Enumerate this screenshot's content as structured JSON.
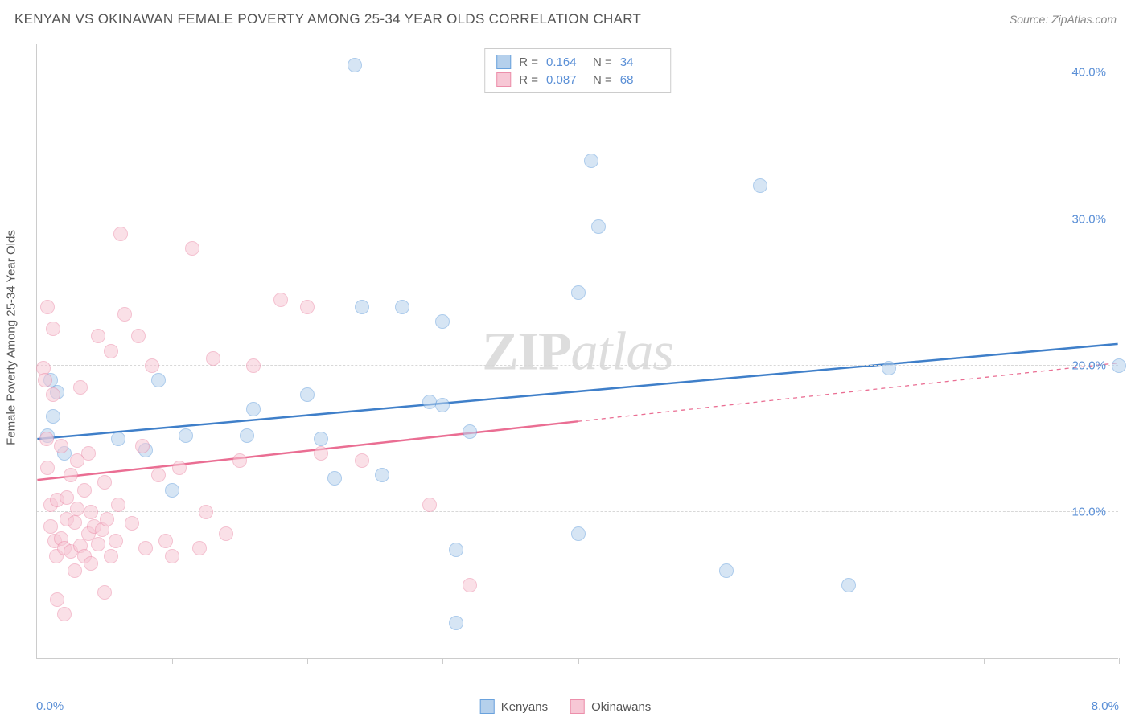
{
  "header": {
    "title": "KENYAN VS OKINAWAN FEMALE POVERTY AMONG 25-34 YEAR OLDS CORRELATION CHART",
    "source_prefix": "Source: ",
    "source_name": "ZipAtlas.com"
  },
  "chart": {
    "type": "scatter",
    "background_color": "#ffffff",
    "grid_color": "#d8d8d8",
    "axis_color": "#cccccc",
    "ylabel": "Female Poverty Among 25-34 Year Olds",
    "label_color": "#555555",
    "tick_label_color": "#5a8fd6",
    "xlim": [
      0,
      8
    ],
    "ylim": [
      0,
      42
    ],
    "ytick_values": [
      10,
      20,
      30,
      40
    ],
    "ytick_labels": [
      "10.0%",
      "20.0%",
      "30.0%",
      "40.0%"
    ],
    "xtick_values": [
      1,
      2,
      3,
      4,
      5,
      6,
      7,
      8
    ],
    "xlim_labels": {
      "left": "0.0%",
      "right": "8.0%"
    },
    "marker_radius": 9,
    "marker_opacity": 0.55,
    "watermark": {
      "zip": "ZIP",
      "atlas": "atlas"
    },
    "legend_top": {
      "rows": [
        {
          "swatch_fill": "#b5d0ec",
          "swatch_border": "#6aa2dd",
          "r_label": "R =",
          "r_val": "0.164",
          "n_label": "N =",
          "n_val": "34"
        },
        {
          "swatch_fill": "#f7c7d5",
          "swatch_border": "#ec8fab",
          "r_label": "R =",
          "r_val": "0.087",
          "n_label": "N =",
          "n_val": "68"
        }
      ]
    },
    "legend_bottom": {
      "items": [
        {
          "swatch_fill": "#b5d0ec",
          "swatch_border": "#6aa2dd",
          "label": "Kenyans"
        },
        {
          "swatch_fill": "#f7c7d5",
          "swatch_border": "#ec8fab",
          "label": "Okinawans"
        }
      ]
    },
    "series": [
      {
        "name": "Kenyans",
        "color_fill": "#b5d0ec",
        "color_border": "#6aa2dd",
        "trend": {
          "color": "#3f7fc9",
          "width": 2.5,
          "y_at_xmin": 15.0,
          "y_at_xmax": 21.5,
          "dash_after_x": null
        },
        "points": [
          [
            0.08,
            15.2
          ],
          [
            0.1,
            19.0
          ],
          [
            0.12,
            16.5
          ],
          [
            0.15,
            18.2
          ],
          [
            0.2,
            14.0
          ],
          [
            0.6,
            15.0
          ],
          [
            0.8,
            14.2
          ],
          [
            0.9,
            19.0
          ],
          [
            1.0,
            11.5
          ],
          [
            1.1,
            15.2
          ],
          [
            1.55,
            15.2
          ],
          [
            1.6,
            17.0
          ],
          [
            2.0,
            18.0
          ],
          [
            2.1,
            15.0
          ],
          [
            2.2,
            12.3
          ],
          [
            2.35,
            40.5
          ],
          [
            2.4,
            24.0
          ],
          [
            2.55,
            12.5
          ],
          [
            2.7,
            24.0
          ],
          [
            2.9,
            17.5
          ],
          [
            3.0,
            17.3
          ],
          [
            3.0,
            23.0
          ],
          [
            3.1,
            2.4
          ],
          [
            3.1,
            7.4
          ],
          [
            3.2,
            15.5
          ],
          [
            4.0,
            8.5
          ],
          [
            4.0,
            25.0
          ],
          [
            4.1,
            34.0
          ],
          [
            4.15,
            29.5
          ],
          [
            5.1,
            6.0
          ],
          [
            5.35,
            32.3
          ],
          [
            6.0,
            5.0
          ],
          [
            6.3,
            19.8
          ],
          [
            8.0,
            20.0
          ]
        ]
      },
      {
        "name": "Okinawans",
        "color_fill": "#f7c7d5",
        "color_border": "#ec8fab",
        "trend": {
          "color": "#ea6e93",
          "width": 2.5,
          "y_at_xmin": 12.2,
          "y_at_xmax": 20.2,
          "dash_after_x": 4.0
        },
        "points": [
          [
            0.05,
            19.8
          ],
          [
            0.06,
            19.0
          ],
          [
            0.07,
            15.0
          ],
          [
            0.08,
            13.0
          ],
          [
            0.08,
            24.0
          ],
          [
            0.1,
            10.5
          ],
          [
            0.1,
            9.0
          ],
          [
            0.12,
            22.5
          ],
          [
            0.12,
            18.0
          ],
          [
            0.13,
            8.0
          ],
          [
            0.14,
            7.0
          ],
          [
            0.15,
            4.0
          ],
          [
            0.15,
            10.8
          ],
          [
            0.18,
            8.2
          ],
          [
            0.18,
            14.5
          ],
          [
            0.2,
            7.5
          ],
          [
            0.2,
            3.0
          ],
          [
            0.22,
            11.0
          ],
          [
            0.22,
            9.5
          ],
          [
            0.25,
            7.3
          ],
          [
            0.25,
            12.5
          ],
          [
            0.28,
            6.0
          ],
          [
            0.28,
            9.3
          ],
          [
            0.3,
            10.2
          ],
          [
            0.3,
            13.5
          ],
          [
            0.32,
            18.5
          ],
          [
            0.32,
            7.7
          ],
          [
            0.35,
            7.0
          ],
          [
            0.35,
            11.5
          ],
          [
            0.38,
            8.5
          ],
          [
            0.38,
            14.0
          ],
          [
            0.4,
            6.5
          ],
          [
            0.4,
            10.0
          ],
          [
            0.42,
            9.0
          ],
          [
            0.45,
            7.8
          ],
          [
            0.45,
            22.0
          ],
          [
            0.48,
            8.8
          ],
          [
            0.5,
            4.5
          ],
          [
            0.5,
            12.0
          ],
          [
            0.52,
            9.5
          ],
          [
            0.55,
            7.0
          ],
          [
            0.55,
            21.0
          ],
          [
            0.58,
            8.0
          ],
          [
            0.6,
            10.5
          ],
          [
            0.62,
            29.0
          ],
          [
            0.65,
            23.5
          ],
          [
            0.7,
            9.2
          ],
          [
            0.75,
            22.0
          ],
          [
            0.78,
            14.5
          ],
          [
            0.8,
            7.5
          ],
          [
            0.85,
            20.0
          ],
          [
            0.9,
            12.5
          ],
          [
            0.95,
            8.0
          ],
          [
            1.0,
            7.0
          ],
          [
            1.05,
            13.0
          ],
          [
            1.15,
            28.0
          ],
          [
            1.2,
            7.5
          ],
          [
            1.25,
            10.0
          ],
          [
            1.3,
            20.5
          ],
          [
            1.4,
            8.5
          ],
          [
            1.5,
            13.5
          ],
          [
            1.6,
            20.0
          ],
          [
            1.8,
            24.5
          ],
          [
            2.0,
            24.0
          ],
          [
            2.1,
            14.0
          ],
          [
            2.4,
            13.5
          ],
          [
            2.9,
            10.5
          ],
          [
            3.2,
            5.0
          ]
        ]
      }
    ]
  }
}
